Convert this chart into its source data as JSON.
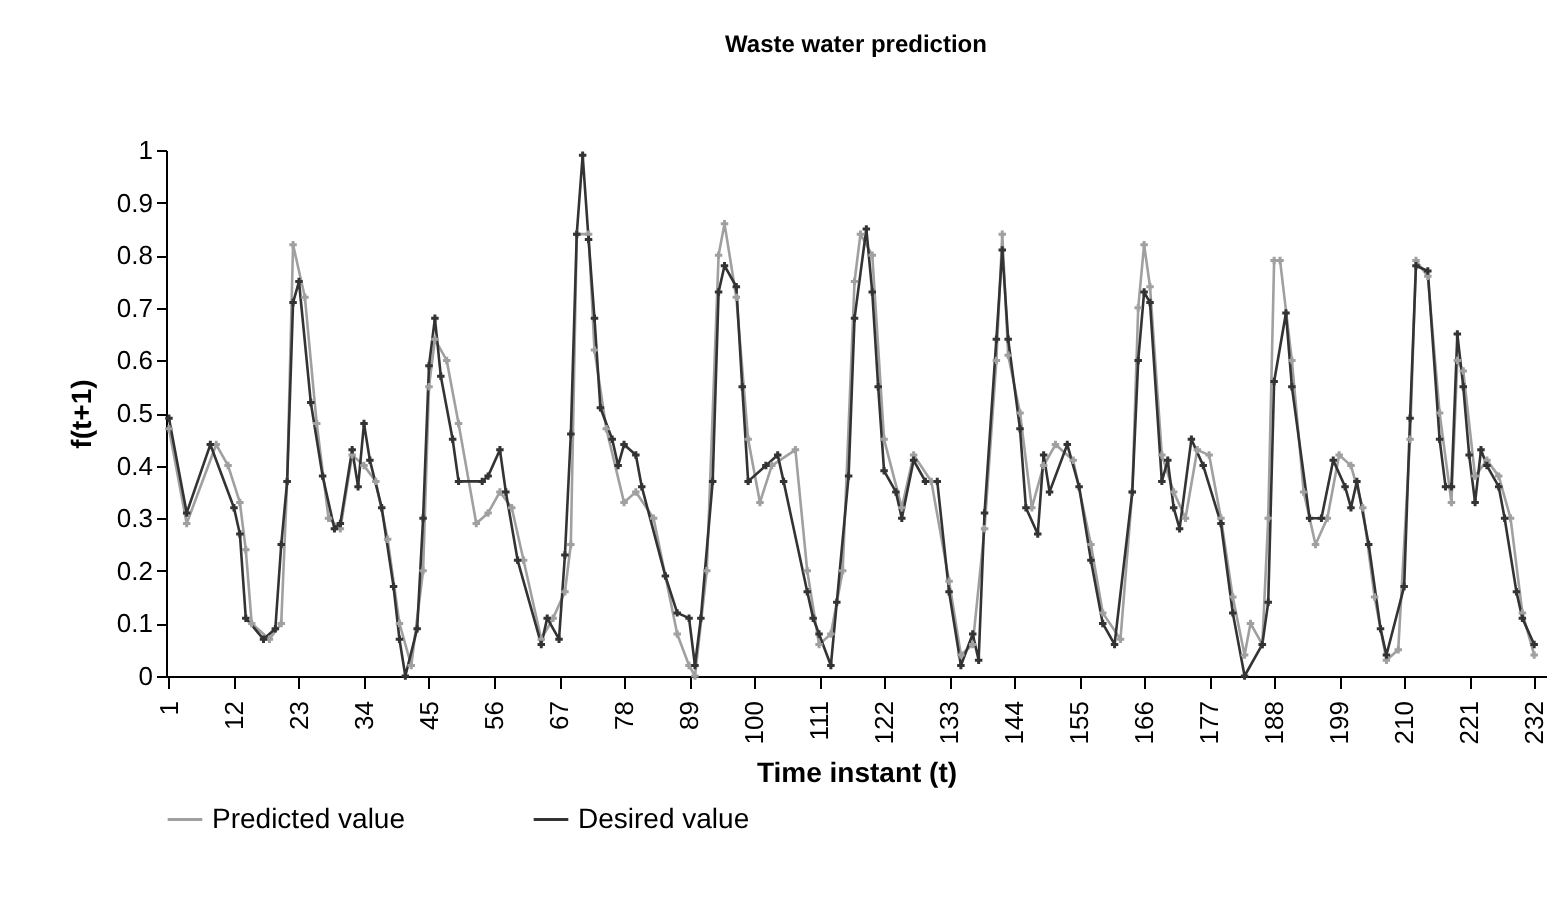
{
  "chart_data": {
    "type": "line",
    "title": "Waste water prediction",
    "xlabel": "Time instant (t)",
    "ylabel": "f(t+1)",
    "xlim": [
      0.5,
      234
    ],
    "xticks": [
      1,
      12,
      23,
      34,
      45,
      56,
      67,
      78,
      89,
      100,
      111,
      122,
      133,
      144,
      155,
      166,
      177,
      188,
      199,
      210,
      221,
      232
    ],
    "ylim": [
      0,
      1
    ],
    "yticks": [
      0,
      0.1,
      0.2,
      0.3,
      0.4,
      0.5,
      0.6,
      0.7,
      0.8,
      0.9,
      1
    ],
    "grid": false,
    "legend": "bottom",
    "marker": "cross",
    "line_style": "solid",
    "series": [
      {
        "name": "Predicted value",
        "color": "#a0a0a0",
        "x": [
          1,
          4,
          9,
          11,
          13,
          14,
          15,
          18,
          20,
          21,
          22,
          24,
          26,
          28,
          30,
          32,
          34,
          36,
          38,
          40,
          42,
          44,
          45,
          46,
          48,
          50,
          53,
          55,
          57,
          59,
          61,
          64,
          66,
          68,
          69,
          70,
          72,
          73,
          75,
          78,
          80,
          83,
          87,
          89,
          90,
          92,
          94,
          95,
          97,
          99,
          101,
          103,
          107,
          109,
          111,
          113,
          115,
          117,
          118,
          120,
          122,
          125,
          127,
          130,
          133,
          135,
          137,
          139,
          141,
          142,
          143,
          145,
          147,
          149,
          151,
          154,
          157,
          159,
          162,
          164,
          165,
          166,
          167,
          169,
          171,
          173,
          175,
          177,
          179,
          181,
          183,
          184,
          186,
          187,
          188,
          189,
          191,
          193,
          195,
          197,
          199,
          201,
          203,
          205,
          207,
          209,
          211,
          212,
          214,
          216,
          218,
          219,
          220,
          222,
          224,
          226,
          228,
          230,
          232
        ],
        "values": [
          0.47,
          0.29,
          0.44,
          0.4,
          0.33,
          0.24,
          0.1,
          0.07,
          0.1,
          0.37,
          0.82,
          0.72,
          0.48,
          0.3,
          0.28,
          0.42,
          0.4,
          0.37,
          0.26,
          0.1,
          0.02,
          0.2,
          0.55,
          0.64,
          0.6,
          0.48,
          0.29,
          0.31,
          0.35,
          0.32,
          0.22,
          0.07,
          0.11,
          0.16,
          0.25,
          0.84,
          0.84,
          0.62,
          0.47,
          0.33,
          0.35,
          0.3,
          0.08,
          0.02,
          0.0,
          0.2,
          0.8,
          0.86,
          0.72,
          0.45,
          0.33,
          0.4,
          0.43,
          0.2,
          0.06,
          0.08,
          0.2,
          0.75,
          0.84,
          0.8,
          0.45,
          0.32,
          0.42,
          0.37,
          0.18,
          0.04,
          0.06,
          0.28,
          0.6,
          0.84,
          0.61,
          0.5,
          0.32,
          0.4,
          0.44,
          0.41,
          0.25,
          0.12,
          0.07,
          0.35,
          0.7,
          0.82,
          0.74,
          0.42,
          0.35,
          0.3,
          0.43,
          0.42,
          0.3,
          0.15,
          0.04,
          0.1,
          0.06,
          0.3,
          0.79,
          0.79,
          0.6,
          0.35,
          0.25,
          0.3,
          0.42,
          0.4,
          0.32,
          0.15,
          0.03,
          0.05,
          0.45,
          0.79,
          0.76,
          0.5,
          0.33,
          0.6,
          0.58,
          0.38,
          0.41,
          0.38,
          0.3,
          0.12,
          0.04
        ]
      },
      {
        "name": "Desired value",
        "color": "#333333",
        "x": [
          1,
          4,
          8,
          12,
          13,
          14,
          17,
          19,
          20,
          21,
          22,
          23,
          25,
          27,
          29,
          30,
          32,
          33,
          34,
          35,
          37,
          39,
          40,
          41,
          43,
          44,
          45,
          46,
          47,
          49,
          50,
          54,
          55,
          57,
          58,
          60,
          64,
          65,
          67,
          68,
          69,
          70,
          71,
          72,
          73,
          74,
          76,
          77,
          78,
          80,
          81,
          85,
          87,
          89,
          90,
          91,
          93,
          94,
          95,
          97,
          98,
          99,
          102,
          104,
          105,
          109,
          110,
          111,
          113,
          114,
          116,
          117,
          119,
          120,
          121,
          122,
          124,
          125,
          127,
          129,
          131,
          133,
          135,
          137,
          138,
          139,
          141,
          142,
          143,
          145,
          146,
          148,
          149,
          150,
          153,
          155,
          157,
          159,
          161,
          164,
          165,
          166,
          167,
          169,
          170,
          171,
          172,
          174,
          176,
          179,
          181,
          183,
          186,
          187,
          188,
          190,
          191,
          194,
          196,
          198,
          200,
          201,
          202,
          204,
          206,
          207,
          210,
          211,
          212,
          214,
          216,
          217,
          218,
          219,
          220,
          221,
          222,
          223,
          224,
          226,
          227,
          229,
          230,
          232
        ],
        "values": [
          0.49,
          0.31,
          0.44,
          0.32,
          0.27,
          0.11,
          0.07,
          0.09,
          0.25,
          0.37,
          0.71,
          0.75,
          0.52,
          0.38,
          0.28,
          0.29,
          0.43,
          0.36,
          0.48,
          0.41,
          0.32,
          0.17,
          0.07,
          0.0,
          0.09,
          0.3,
          0.59,
          0.68,
          0.57,
          0.45,
          0.37,
          0.37,
          0.38,
          0.43,
          0.35,
          0.22,
          0.06,
          0.11,
          0.07,
          0.23,
          0.46,
          0.84,
          0.99,
          0.83,
          0.68,
          0.51,
          0.45,
          0.4,
          0.44,
          0.42,
          0.36,
          0.19,
          0.12,
          0.11,
          0.02,
          0.11,
          0.37,
          0.73,
          0.78,
          0.74,
          0.55,
          0.37,
          0.4,
          0.42,
          0.37,
          0.16,
          0.11,
          0.08,
          0.02,
          0.14,
          0.38,
          0.68,
          0.85,
          0.73,
          0.55,
          0.39,
          0.35,
          0.3,
          0.41,
          0.37,
          0.37,
          0.16,
          0.02,
          0.08,
          0.03,
          0.31,
          0.64,
          0.81,
          0.64,
          0.47,
          0.32,
          0.27,
          0.42,
          0.35,
          0.44,
          0.36,
          0.22,
          0.1,
          0.06,
          0.35,
          0.6,
          0.73,
          0.71,
          0.37,
          0.41,
          0.32,
          0.28,
          0.45,
          0.4,
          0.29,
          0.12,
          0.0,
          0.06,
          0.14,
          0.56,
          0.69,
          0.55,
          0.3,
          0.3,
          0.41,
          0.36,
          0.32,
          0.37,
          0.25,
          0.09,
          0.04,
          0.17,
          0.49,
          0.78,
          0.77,
          0.45,
          0.36,
          0.36,
          0.65,
          0.55,
          0.42,
          0.33,
          0.43,
          0.4,
          0.36,
          0.3,
          0.16,
          0.11,
          0.06
        ]
      }
    ]
  }
}
